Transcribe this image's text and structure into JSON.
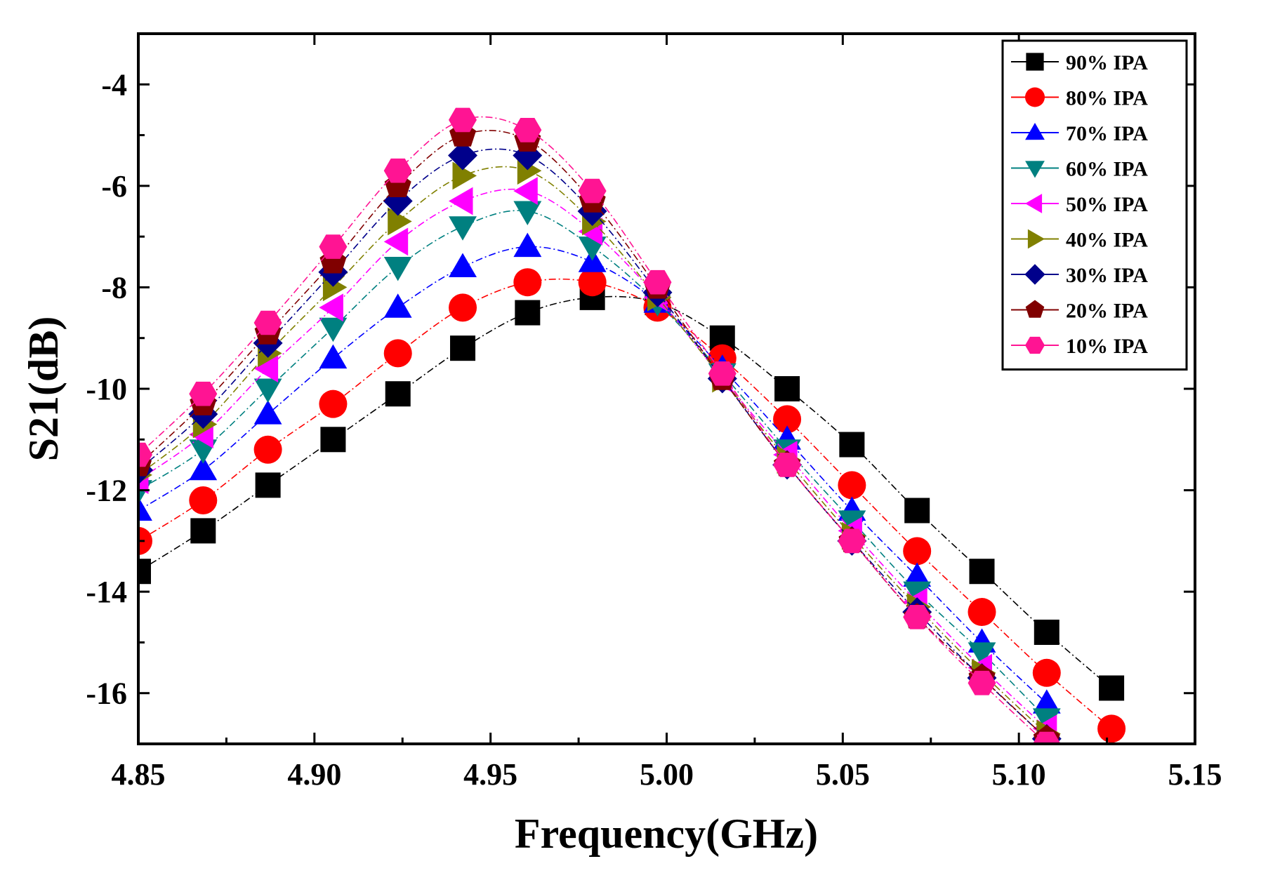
{
  "chart_data": {
    "type": "scatter",
    "title": "",
    "xlabel": "Frequency(GHz)",
    "ylabel": "S21(dB)",
    "xlim": [
      4.85,
      5.15
    ],
    "ylim": [
      -17,
      -3
    ],
    "xticks": [
      4.85,
      4.9,
      4.95,
      5.0,
      5.05,
      5.1,
      5.15
    ],
    "xtick_labels": [
      "4.85",
      "4.90",
      "4.95",
      "5.00",
      "5.05",
      "5.10",
      "5.15"
    ],
    "yticks": [
      -4,
      -6,
      -8,
      -10,
      -12,
      -14,
      -16
    ],
    "ytick_labels": [
      "-4",
      "-6",
      "-8",
      "-10",
      "-12",
      "-14",
      "-16"
    ],
    "grid": false,
    "legend_position": "top-right",
    "x": [
      4.85,
      4.8684,
      4.8868,
      4.9053,
      4.9237,
      4.9421,
      4.9605,
      4.9789,
      4.9974,
      5.0158,
      5.0342,
      5.0526,
      5.0711,
      5.0895,
      5.1079,
      5.1263
    ],
    "series": [
      {
        "name": "90% IPA",
        "color": "#000000",
        "marker": "square",
        "values": [
          -13.6,
          -12.8,
          -11.9,
          -11.0,
          -10.1,
          -9.2,
          -8.5,
          -8.2,
          -8.3,
          -9.0,
          -10.0,
          -11.1,
          -12.4,
          -13.6,
          -14.8,
          -15.9
        ]
      },
      {
        "name": "80% IPA",
        "color": "#ff0000",
        "marker": "circle",
        "values": [
          -13.0,
          -12.2,
          -11.2,
          -10.3,
          -9.3,
          -8.4,
          -7.9,
          -7.9,
          -8.4,
          -9.4,
          -10.6,
          -11.9,
          -13.2,
          -14.4,
          -15.6,
          -16.7
        ]
      },
      {
        "name": "70% IPA",
        "color": "#0000ff",
        "marker": "triangle-up",
        "values": [
          -12.4,
          -11.6,
          -10.5,
          -9.4,
          -8.4,
          -7.6,
          -7.2,
          -7.5,
          -8.3,
          -9.6,
          -11.0,
          -12.4,
          -13.7,
          -15.0,
          -16.2,
          null
        ]
      },
      {
        "name": "60% IPA",
        "color": "#008080",
        "marker": "triangle-down",
        "values": [
          -12.0,
          -11.2,
          -10.0,
          -8.8,
          -7.6,
          -6.8,
          -6.5,
          -7.2,
          -8.3,
          -9.7,
          -11.2,
          -12.6,
          -14.0,
          -15.2,
          -16.5,
          null
        ]
      },
      {
        "name": "50% IPA",
        "color": "#ff00ff",
        "marker": "triangle-left",
        "values": [
          -11.8,
          -10.9,
          -9.6,
          -8.4,
          -7.1,
          -6.3,
          -6.1,
          -6.9,
          -8.2,
          -9.8,
          -11.3,
          -12.8,
          -14.2,
          -15.5,
          -16.7,
          null
        ]
      },
      {
        "name": "40% IPA",
        "color": "#808000",
        "marker": "triangle-right",
        "values": [
          -11.7,
          -10.7,
          -9.3,
          -8.0,
          -6.7,
          -5.8,
          -5.7,
          -6.7,
          -8.2,
          -9.8,
          -11.4,
          -12.9,
          -14.3,
          -15.6,
          -16.8,
          null
        ]
      },
      {
        "name": "30% IPA",
        "color": "#00008b",
        "marker": "diamond",
        "values": [
          -11.6,
          -10.5,
          -9.1,
          -7.7,
          -6.3,
          -5.4,
          -5.4,
          -6.5,
          -8.1,
          -9.8,
          -11.5,
          -13.0,
          -14.4,
          -15.7,
          -16.9,
          null
        ]
      },
      {
        "name": "20% IPA",
        "color": "#800000",
        "marker": "pentagon",
        "values": [
          -11.5,
          -10.3,
          -8.9,
          -7.5,
          -6.0,
          -5.0,
          -5.1,
          -6.3,
          -8.0,
          -9.8,
          -11.5,
          -13.0,
          -14.5,
          -15.7,
          -16.9,
          null
        ]
      },
      {
        "name": "10% IPA",
        "color": "#ff1493",
        "marker": "hexagon",
        "values": [
          -11.3,
          -10.1,
          -8.7,
          -7.2,
          -5.7,
          -4.7,
          -4.9,
          -6.1,
          -7.9,
          -9.7,
          -11.5,
          -13.0,
          -14.5,
          -15.8,
          -17.0,
          null
        ]
      }
    ]
  }
}
